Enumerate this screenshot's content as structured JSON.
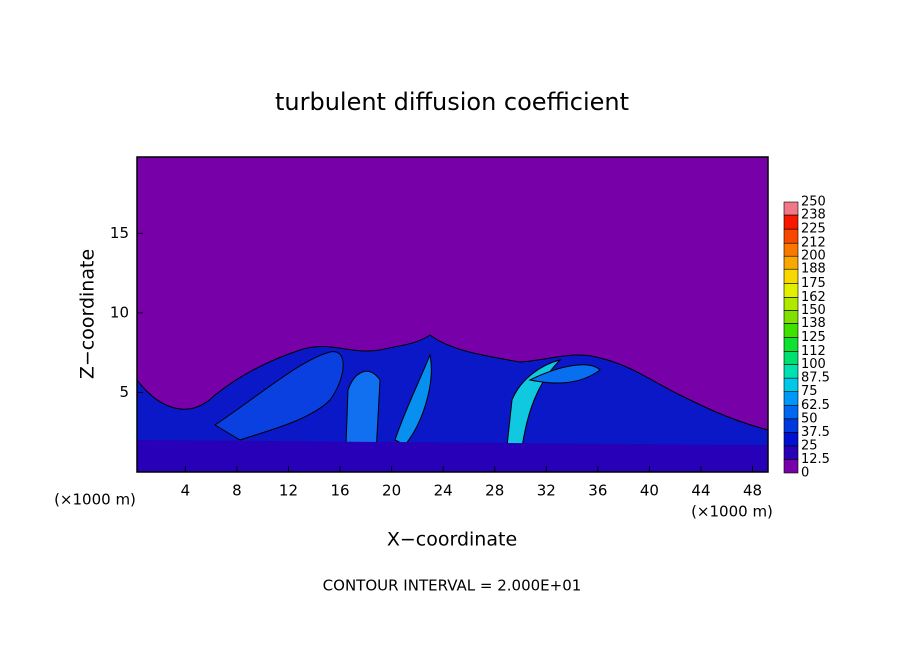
{
  "chart_data": {
    "type": "contour",
    "title": "turbulent diffusion coefficient",
    "x_label": "X−coordinate",
    "y_label": "Z−coordinate",
    "x_unit": "(×1000 m)",
    "y_unit": "(×1000 m)",
    "note": "CONTOUR INTERVAL = 2.000E+01",
    "xlim": [
      0.25,
      49.2
    ],
    "xticks": [
      4,
      8,
      12,
      16,
      20,
      24,
      28,
      32,
      36,
      40,
      44,
      48
    ],
    "ylim": [
      0,
      19.8
    ],
    "yticks": [
      5,
      10,
      15
    ],
    "colorbar": {
      "levels": [
        0,
        12.5,
        25,
        37.5,
        50,
        62.5,
        75,
        87.5,
        100,
        112,
        125,
        138,
        150,
        162,
        175,
        188,
        200,
        212,
        225,
        238,
        250
      ],
      "colors": [
        "#7800a8",
        "#2800b8",
        "#0010d0",
        "#0038e0",
        "#0068f0",
        "#0098f8",
        "#00c8e8",
        "#00e0b0",
        "#00e070",
        "#10e030",
        "#40e000",
        "#80e000",
        "#b0e800",
        "#e0f000",
        "#f8d800",
        "#f8a800",
        "#f87800",
        "#f84800",
        "#f81800",
        "#f07888"
      ]
    }
  }
}
